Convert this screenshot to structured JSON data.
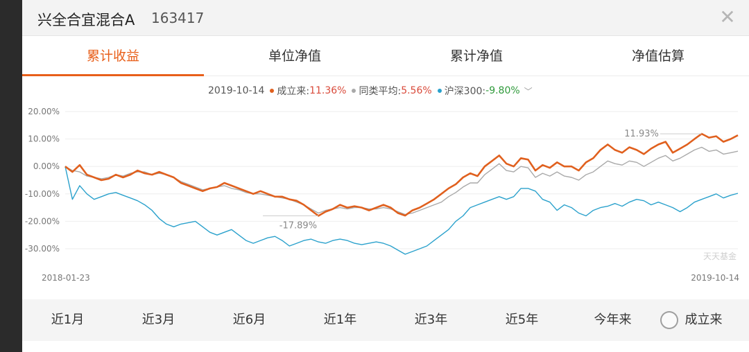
{
  "header": {
    "fund_name": "兴全合宜混合A",
    "fund_code": "163417"
  },
  "tabs": [
    {
      "label": "累计收益",
      "active": true
    },
    {
      "label": "单位净值",
      "active": false
    },
    {
      "label": "累计净值",
      "active": false
    },
    {
      "label": "净值估算",
      "active": false
    }
  ],
  "legend": {
    "date": "2019-10-14",
    "fund_label": "成立来:",
    "fund_value": "11.36%",
    "peer_label": "同类平均:",
    "peer_value": "5.56%",
    "index_label": "沪深300:",
    "index_value": "-9.80%",
    "colors": {
      "fund": "#e0601e",
      "peer": "#a9a9a9",
      "index": "#2aa1cc"
    }
  },
  "chart_data": {
    "type": "line",
    "y_ticks": [
      "20.00%",
      "10.00%",
      "0.00%",
      "-10.00%",
      "-20.00%",
      "-30.00%"
    ],
    "ylim": [
      -35,
      22
    ],
    "x_start_label": "2018-01-23",
    "x_end_label": "2019-10-14",
    "annotations": {
      "max_label": "11.93%",
      "min_label": "-17.89%"
    },
    "watermark": "天天基金",
    "series": [
      {
        "name": "成立来",
        "color": "#e0601e",
        "values": [
          0,
          -2,
          0.5,
          -3,
          -4,
          -5,
          -4.5,
          -3,
          -4,
          -3,
          -1.5,
          -2.5,
          -3,
          -2,
          -3,
          -4,
          -6,
          -7,
          -8,
          -9,
          -8,
          -7.5,
          -6,
          -7,
          -8,
          -9,
          -10,
          -9,
          -10,
          -11,
          -11,
          -12,
          -12.5,
          -14,
          -16,
          -18,
          -16.5,
          -15.5,
          -14,
          -15,
          -14.5,
          -15,
          -16,
          -15,
          -14,
          -15,
          -17,
          -17.9,
          -16,
          -15,
          -13.5,
          -12,
          -10,
          -8,
          -6.5,
          -4,
          -2.5,
          -3.5,
          0,
          2,
          4,
          1,
          0,
          3,
          2.5,
          -1.5,
          0.5,
          -0.5,
          1.5,
          0,
          0,
          -1.5,
          1.5,
          3,
          6,
          8,
          6,
          5,
          7,
          6,
          4.5,
          6.5,
          8,
          9,
          5,
          6.5,
          8,
          10,
          11.9,
          10.5,
          11,
          9,
          10,
          11.36
        ]
      },
      {
        "name": "同类平均",
        "color": "#a9a9a9",
        "values": [
          0,
          -1.5,
          -2,
          -3.5,
          -4,
          -4.5,
          -4,
          -3,
          -3.5,
          -2.5,
          -2,
          -2,
          -3,
          -2.5,
          -3,
          -4,
          -5.5,
          -6.5,
          -7.5,
          -8.5,
          -8,
          -7.5,
          -7,
          -8,
          -8.5,
          -9.5,
          -10,
          -10,
          -10.5,
          -11,
          -11.5,
          -12,
          -13,
          -14,
          -15.5,
          -17,
          -16,
          -15.5,
          -15,
          -15.5,
          -15,
          -15,
          -15.5,
          -15.5,
          -15,
          -15.5,
          -16.5,
          -17.5,
          -17,
          -16,
          -15,
          -14,
          -13,
          -11,
          -9.5,
          -7.5,
          -6,
          -6,
          -3,
          -1,
          1,
          -1.5,
          -2,
          0,
          -0.5,
          -4,
          -2.5,
          -3.5,
          -2,
          -3.5,
          -4,
          -5,
          -3,
          -2,
          0,
          2,
          1,
          0.5,
          2,
          1.5,
          0,
          1.5,
          3,
          4,
          2,
          3,
          4.5,
          6,
          7,
          5.5,
          6,
          4.5,
          5,
          5.56
        ]
      },
      {
        "name": "沪深300",
        "color": "#2aa1cc",
        "values": [
          0,
          -12,
          -7,
          -10,
          -12,
          -11,
          -10,
          -9.5,
          -10.5,
          -11.5,
          -12.5,
          -14,
          -16,
          -19,
          -21,
          -22,
          -21,
          -20.5,
          -20,
          -22,
          -24,
          -25,
          -24,
          -23,
          -25,
          -27,
          -28,
          -27,
          -26,
          -25.5,
          -27,
          -29,
          -28,
          -27,
          -26.5,
          -27.5,
          -28,
          -27,
          -26.5,
          -27,
          -28,
          -28.5,
          -28,
          -27.5,
          -28,
          -29,
          -30.5,
          -32,
          -31,
          -30,
          -29,
          -27,
          -25,
          -23,
          -20,
          -18,
          -15,
          -14,
          -13,
          -12,
          -11,
          -12,
          -11,
          -8,
          -8,
          -9,
          -12,
          -13,
          -16,
          -14,
          -15,
          -17,
          -18,
          -16,
          -15,
          -14.5,
          -13.5,
          -14.5,
          -13,
          -12,
          -12.5,
          -14,
          -13,
          -14,
          -15,
          -16.5,
          -15,
          -13,
          -12,
          -11,
          -10,
          -11.5,
          -10.5,
          -9.8
        ]
      }
    ]
  },
  "periods": [
    "近1月",
    "近3月",
    "近6月",
    "近1年",
    "近3年",
    "近5年",
    "今年来",
    "成立来"
  ]
}
